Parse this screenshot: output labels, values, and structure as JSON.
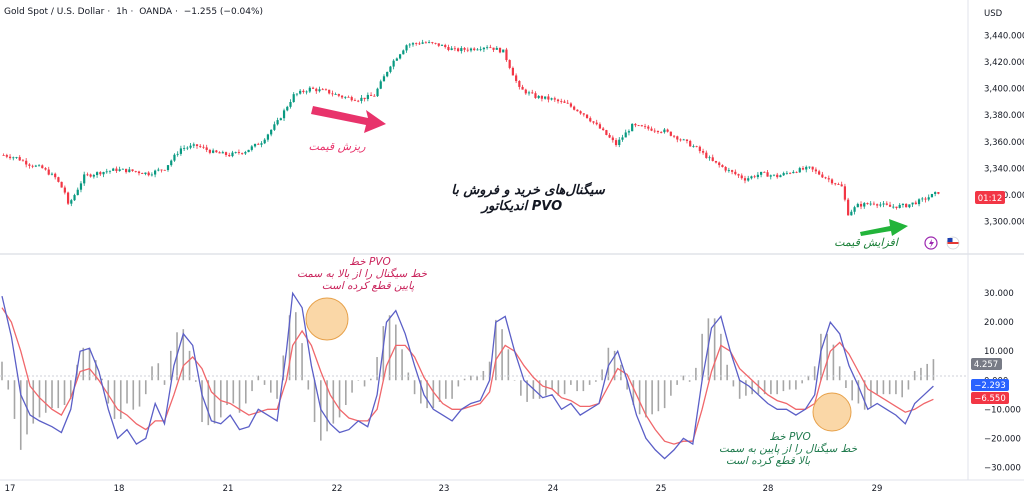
{
  "header": {
    "symbol": "Gold Spot / U.S. Dollar",
    "interval": "1h",
    "broker": "OANDA",
    "change": "−1.255 (−0.04%)"
  },
  "price_axis": {
    "currency": "USD",
    "ticks": [
      "3,440.000",
      "3,420.000",
      "3,400.000",
      "3,380.000",
      "3,360.000",
      "3,340.000",
      "3,320.000",
      "3,300.000"
    ],
    "countdown": "01:12"
  },
  "pvo_axis": {
    "ticks": [
      "30.000",
      "20.000",
      "10.000",
      "0.000",
      "−10.000",
      "−20.000",
      "−30.000"
    ],
    "histogram_value": "4.257",
    "pvo_value": "−2.293",
    "signal_value": "−6.550"
  },
  "time_axis": [
    "17",
    "18",
    "21",
    "22",
    "23",
    "24",
    "25",
    "28",
    "29"
  ],
  "annotations": {
    "title_line1": "سیگنال‌های خرید و فروش با",
    "title_line2": "اندیکاتور  PVO",
    "price_drop": "ریزش قیمت",
    "price_rise": "افزایش قیمت",
    "cross_down_line1": "خط PVO",
    "cross_down_line2": "خط سیگنال را از بالا به سمت",
    "cross_down_line3": "پایین قطع کرده است",
    "cross_up_line1": "خط PVO",
    "cross_up_line2": "خط سیگنال را از پایین به سمت",
    "cross_up_line3": "بالا قطع کرده است"
  },
  "colors": {
    "up_candle": "#089981",
    "down_candle": "#f23645",
    "pvo_line": "#5b5fc7",
    "signal_line": "#f0676b",
    "histogram": "#a6a6a6",
    "drop_arrow": "#e8336b",
    "rise_arrow": "#22b43a",
    "title_text": "#131722",
    "circle_fill": "#f8c98a",
    "badge_blue": "#2962ff",
    "badge_red": "#f23645",
    "badge_gray": "#787b86"
  },
  "chart_data": [
    {
      "type": "candlestick",
      "title": "Gold Spot / U.S. Dollar · 1h · OANDA",
      "ylabel": "USD",
      "ylim": [
        3289,
        3448
      ],
      "grid": false,
      "x_ticks": [
        "17",
        "18",
        "21",
        "22",
        "23",
        "24",
        "25",
        "28",
        "29"
      ],
      "close_path": [
        [
          0,
          3350
        ],
        [
          4,
          3348
        ],
        [
          8,
          3343
        ],
        [
          12,
          3340
        ],
        [
          16,
          3333
        ],
        [
          19,
          3322
        ],
        [
          20,
          3312
        ],
        [
          22,
          3320
        ],
        [
          25,
          3334
        ],
        [
          30,
          3337
        ],
        [
          35,
          3339
        ],
        [
          40,
          3338
        ],
        [
          45,
          3336
        ],
        [
          50,
          3340
        ],
        [
          55,
          3355
        ],
        [
          60,
          3357
        ],
        [
          65,
          3352
        ],
        [
          70,
          3350
        ],
        [
          75,
          3353
        ],
        [
          80,
          3360
        ],
        [
          85,
          3375
        ],
        [
          90,
          3395
        ],
        [
          95,
          3400
        ],
        [
          100,
          3398
        ],
        [
          105,
          3394
        ],
        [
          110,
          3392
        ],
        [
          115,
          3395
        ],
        [
          120,
          3418
        ],
        [
          125,
          3433
        ],
        [
          130,
          3435
        ],
        [
          135,
          3433
        ],
        [
          140,
          3429
        ],
        [
          145,
          3430
        ],
        [
          150,
          3432
        ],
        [
          155,
          3428
        ],
        [
          160,
          3400
        ],
        [
          165,
          3394
        ],
        [
          170,
          3392
        ],
        [
          175,
          3388
        ],
        [
          180,
          3381
        ],
        [
          185,
          3370
        ],
        [
          190,
          3358
        ],
        [
          195,
          3372
        ],
        [
          200,
          3370
        ],
        [
          205,
          3368
        ],
        [
          210,
          3362
        ],
        [
          215,
          3355
        ],
        [
          220,
          3345
        ],
        [
          225,
          3338
        ],
        [
          230,
          3332
        ],
        [
          235,
          3336
        ],
        [
          240,
          3334
        ],
        [
          245,
          3338
        ],
        [
          250,
          3340
        ],
        [
          255,
          3333
        ],
        [
          260,
          3326
        ],
        [
          262,
          3306
        ],
        [
          265,
          3312
        ],
        [
          270,
          3314
        ],
        [
          275,
          3311
        ],
        [
          280,
          3312
        ],
        [
          285,
          3316
        ],
        [
          290,
          3322
        ]
      ],
      "n_candles": 291
    },
    {
      "type": "line",
      "title": "PVO",
      "ylim": [
        -33,
        38
      ],
      "grid": false,
      "series": [
        {
          "name": "PVO",
          "points": [
            [
              0,
              29
            ],
            [
              3,
              15
            ],
            [
              6,
              -5
            ],
            [
              9,
              -12
            ],
            [
              12,
              -14
            ],
            [
              16,
              -16
            ],
            [
              19,
              -18
            ],
            [
              22,
              -10
            ],
            [
              25,
              10
            ],
            [
              28,
              11
            ],
            [
              31,
              3
            ],
            [
              34,
              -10
            ],
            [
              37,
              -20
            ],
            [
              40,
              -17
            ],
            [
              43,
              -22
            ],
            [
              46,
              -20
            ],
            [
              49,
              -8
            ],
            [
              52,
              -15
            ],
            [
              55,
              5
            ],
            [
              58,
              16
            ],
            [
              61,
              12
            ],
            [
              64,
              -5
            ],
            [
              67,
              -14
            ],
            [
              70,
              -15
            ],
            [
              73,
              -12
            ],
            [
              76,
              -17
            ],
            [
              79,
              -16
            ],
            [
              82,
              -10
            ],
            [
              85,
              -12
            ],
            [
              88,
              -14
            ],
            [
              91,
              10
            ],
            [
              93,
              30
            ],
            [
              96,
              25
            ],
            [
              99,
              5
            ],
            [
              102,
              -10
            ],
            [
              105,
              -15
            ],
            [
              108,
              -18
            ],
            [
              111,
              -17
            ],
            [
              114,
              -14
            ],
            [
              117,
              -16
            ],
            [
              120,
              -5
            ],
            [
              123,
              20
            ],
            [
              126,
              24
            ],
            [
              129,
              16
            ],
            [
              132,
              5
            ],
            [
              135,
              -5
            ],
            [
              138,
              -10
            ],
            [
              141,
              -12
            ],
            [
              144,
              -14
            ],
            [
              147,
              -10
            ],
            [
              150,
              -8
            ],
            [
              153,
              -7
            ],
            [
              156,
              0
            ],
            [
              158,
              20
            ],
            [
              161,
              22
            ],
            [
              164,
              10
            ],
            [
              167,
              0
            ],
            [
              170,
              -3
            ],
            [
              173,
              -6
            ],
            [
              176,
              -5
            ],
            [
              179,
              -10
            ],
            [
              182,
              -8
            ],
            [
              185,
              -12
            ],
            [
              188,
              -10
            ],
            [
              191,
              -8
            ],
            [
              194,
              5
            ],
            [
              197,
              10
            ],
            [
              200,
              0
            ],
            [
              203,
              -12
            ],
            [
              206,
              -20
            ],
            [
              209,
              -24
            ],
            [
              212,
              -27
            ],
            [
              215,
              -24
            ],
            [
              218,
              -20
            ],
            [
              221,
              -22
            ],
            [
              224,
              0
            ],
            [
              227,
              18
            ],
            [
              230,
              22
            ],
            [
              233,
              10
            ],
            [
              236,
              0
            ],
            [
              239,
              -2
            ],
            [
              242,
              -5
            ],
            [
              245,
              -8
            ],
            [
              248,
              -10
            ],
            [
              251,
              -10
            ],
            [
              254,
              -12
            ],
            [
              257,
              -10
            ],
            [
              260,
              -5
            ],
            [
              262,
              10
            ],
            [
              265,
              20
            ],
            [
              268,
              16
            ],
            [
              271,
              5
            ],
            [
              274,
              -2
            ],
            [
              277,
              -10
            ],
            [
              280,
              -8
            ],
            [
              283,
              -10
            ],
            [
              286,
              -12
            ],
            [
              289,
              -15
            ],
            [
              292,
              -8
            ],
            [
              295,
              -5
            ],
            [
              298,
              -2
            ]
          ]
        },
        {
          "name": "Signal",
          "points": [
            [
              0,
              25
            ],
            [
              3,
              20
            ],
            [
              6,
              10
            ],
            [
              9,
              -2
            ],
            [
              12,
              -6
            ],
            [
              16,
              -10
            ],
            [
              19,
              -12
            ],
            [
              22,
              -6
            ],
            [
              25,
              3
            ],
            [
              28,
              4
            ],
            [
              31,
              0
            ],
            [
              34,
              -5
            ],
            [
              37,
              -10
            ],
            [
              40,
              -12
            ],
            [
              43,
              -15
            ],
            [
              46,
              -17
            ],
            [
              49,
              -14
            ],
            [
              52,
              -14
            ],
            [
              55,
              -5
            ],
            [
              58,
              5
            ],
            [
              61,
              8
            ],
            [
              64,
              4
            ],
            [
              67,
              -4
            ],
            [
              70,
              -7
            ],
            [
              73,
              -8
            ],
            [
              76,
              -10
            ],
            [
              79,
              -12
            ],
            [
              82,
              -11
            ],
            [
              85,
              -10
            ],
            [
              88,
              -10
            ],
            [
              91,
              0
            ],
            [
              93,
              12
            ],
            [
              96,
              17
            ],
            [
              99,
              12
            ],
            [
              102,
              3
            ],
            [
              105,
              -5
            ],
            [
              108,
              -10
            ],
            [
              111,
              -13
            ],
            [
              114,
              -14
            ],
            [
              117,
              -14
            ],
            [
              120,
              -10
            ],
            [
              123,
              5
            ],
            [
              126,
              12
            ],
            [
              129,
              12
            ],
            [
              132,
              8
            ],
            [
              135,
              1
            ],
            [
              138,
              -4
            ],
            [
              141,
              -8
            ],
            [
              144,
              -10
            ],
            [
              147,
              -10
            ],
            [
              150,
              -9
            ],
            [
              153,
              -8
            ],
            [
              156,
              -4
            ],
            [
              158,
              7
            ],
            [
              161,
              12
            ],
            [
              164,
              10
            ],
            [
              167,
              5
            ],
            [
              170,
              1
            ],
            [
              173,
              -2
            ],
            [
              176,
              -3
            ],
            [
              179,
              -6
            ],
            [
              182,
              -7
            ],
            [
              185,
              -9
            ],
            [
              188,
              -9
            ],
            [
              191,
              -8
            ],
            [
              194,
              -2
            ],
            [
              197,
              4
            ],
            [
              200,
              2
            ],
            [
              203,
              -5
            ],
            [
              206,
              -12
            ],
            [
              209,
              -17
            ],
            [
              212,
              -21
            ],
            [
              215,
              -22
            ],
            [
              218,
              -21
            ],
            [
              221,
              -21
            ],
            [
              224,
              -10
            ],
            [
              227,
              3
            ],
            [
              230,
              12
            ],
            [
              233,
              10
            ],
            [
              236,
              4
            ],
            [
              239,
              1
            ],
            [
              242,
              -2
            ],
            [
              245,
              -5
            ],
            [
              248,
              -7
            ],
            [
              251,
              -8
            ],
            [
              254,
              -10
            ],
            [
              257,
              -10
            ],
            [
              260,
              -8
            ],
            [
              262,
              0
            ],
            [
              265,
              10
            ],
            [
              268,
              13
            ],
            [
              271,
              9
            ],
            [
              274,
              3
            ],
            [
              277,
              -3
            ],
            [
              280,
              -5
            ],
            [
              283,
              -7
            ],
            [
              286,
              -9
            ],
            [
              289,
              -11
            ],
            [
              292,
              -10
            ],
            [
              295,
              -8
            ],
            [
              298,
              -6.55
            ]
          ]
        }
      ],
      "histogram": "PVO − Signal, drawn as gray bars around the 0 level"
    }
  ]
}
